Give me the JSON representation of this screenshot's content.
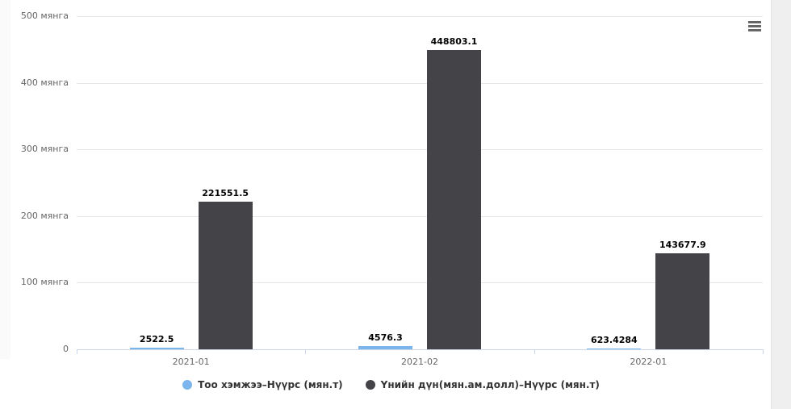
{
  "chart_data": {
    "type": "bar",
    "categories": [
      "2021-01",
      "2021-02",
      "2022-01"
    ],
    "series": [
      {
        "name": "Тоо хэмжээ–Нүүрс (мян.т)",
        "color": "#7cb5ec",
        "values": [
          2522.5,
          4576.3,
          623.4284
        ]
      },
      {
        "name": "Үнийн дүн(мян.ам.долл)–Нүүрс (мян.т)",
        "color": "#434348",
        "values": [
          221551.5,
          448803.1,
          143677.9
        ]
      }
    ],
    "title": "",
    "xlabel": "",
    "ylabel": "",
    "ylim": [
      0,
      500000
    ],
    "ytick_step": 100000,
    "ytick_labels": [
      "0",
      "100 мянга",
      "200 мянга",
      "300 мянга",
      "400 мянга",
      "500 мянга"
    ],
    "grid": true,
    "data_labels": true,
    "legend_position": "bottom"
  },
  "colors": {
    "grid": "#e6e6e6",
    "axis": "#ccd6eb",
    "tick_label": "#666666",
    "data_label": "#000000",
    "legend_text": "#333333",
    "menu_icon": "#666666"
  }
}
